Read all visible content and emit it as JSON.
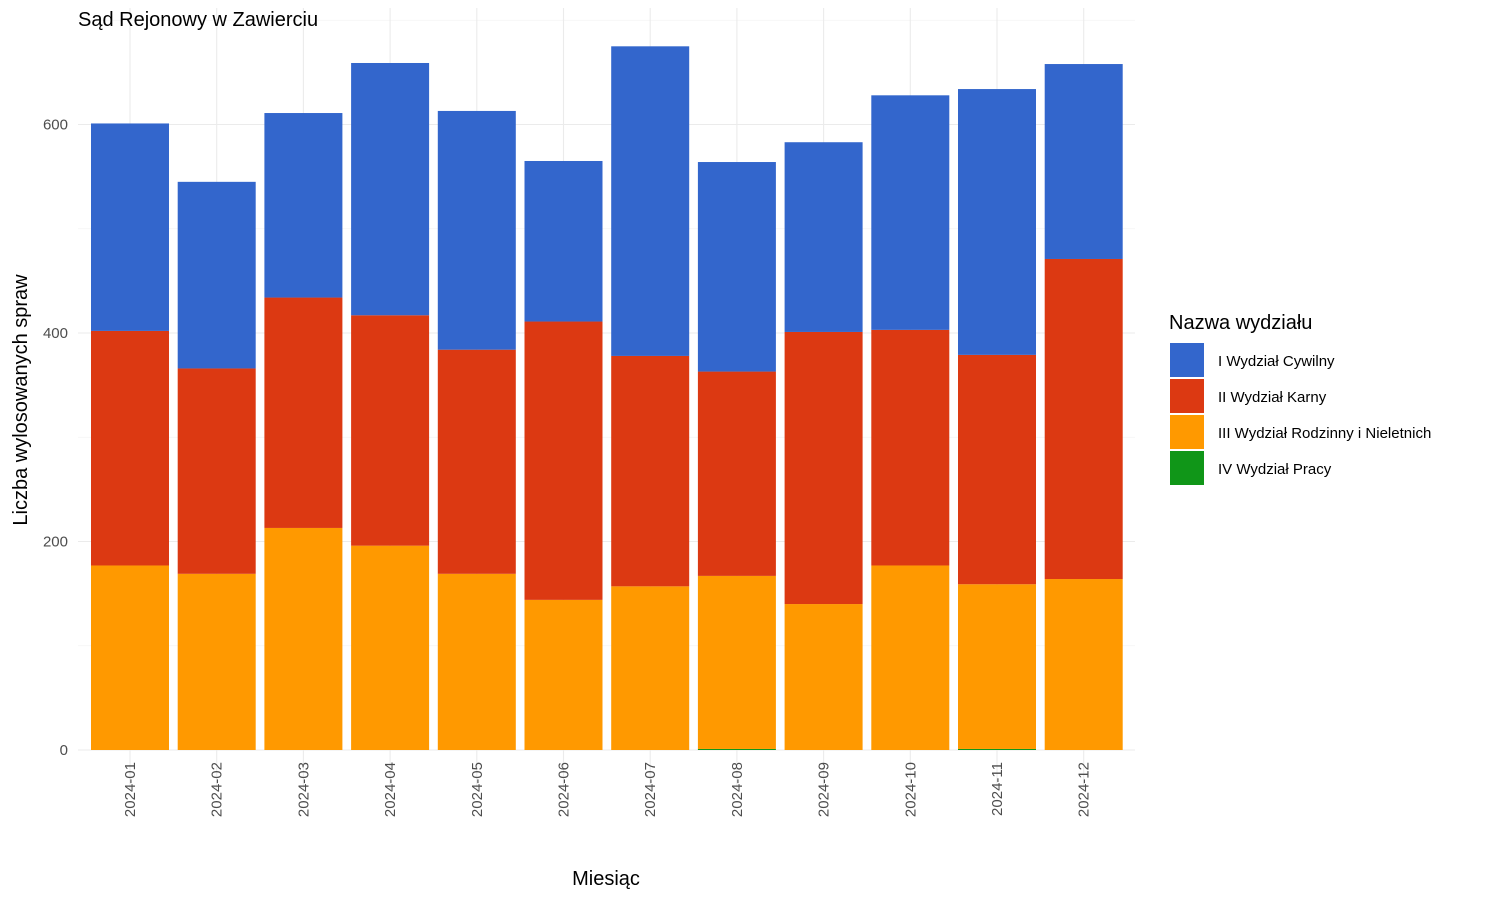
{
  "chart_data": {
    "type": "bar",
    "stacked": true,
    "title": "Sąd Rejonowy w Zawierciu",
    "xlabel": "Miesiąc",
    "ylabel": "Liczba wylosowanych spraw",
    "ylim": [
      0,
      700
    ],
    "yticks": [
      0,
      200,
      400,
      600
    ],
    "grid": true,
    "legend_position": "right",
    "legend_title": "Nazwa wydziału",
    "categories": [
      "2024-01",
      "2024-02",
      "2024-03",
      "2024-04",
      "2024-05",
      "2024-06",
      "2024-07",
      "2024-08",
      "2024-09",
      "2024-10",
      "2024-11",
      "2024-12"
    ],
    "series": [
      {
        "name": "IV Wydział Pracy",
        "color": "#109618",
        "values": [
          0,
          0,
          0,
          0,
          0,
          0,
          0,
          1,
          0,
          0,
          1,
          0
        ]
      },
      {
        "name": "III Wydział Rodzinny i Nieletnich",
        "color": "#FF9900",
        "values": [
          177,
          169,
          213,
          196,
          169,
          144,
          157,
          166,
          140,
          177,
          158,
          164
        ]
      },
      {
        "name": "II Wydział Karny",
        "color": "#DC3912",
        "values": [
          225,
          197,
          221,
          221,
          215,
          267,
          221,
          196,
          261,
          226,
          220,
          307
        ]
      },
      {
        "name": "I Wydział Cywilny",
        "color": "#3366CC",
        "values": [
          199,
          179,
          177,
          242,
          229,
          154,
          297,
          201,
          182,
          225,
          255,
          187
        ]
      }
    ],
    "legend_order": [
      "I Wydział Cywilny",
      "II Wydział Karny",
      "III Wydział Rodzinny i Nieletnich",
      "IV Wydział Pracy"
    ]
  }
}
